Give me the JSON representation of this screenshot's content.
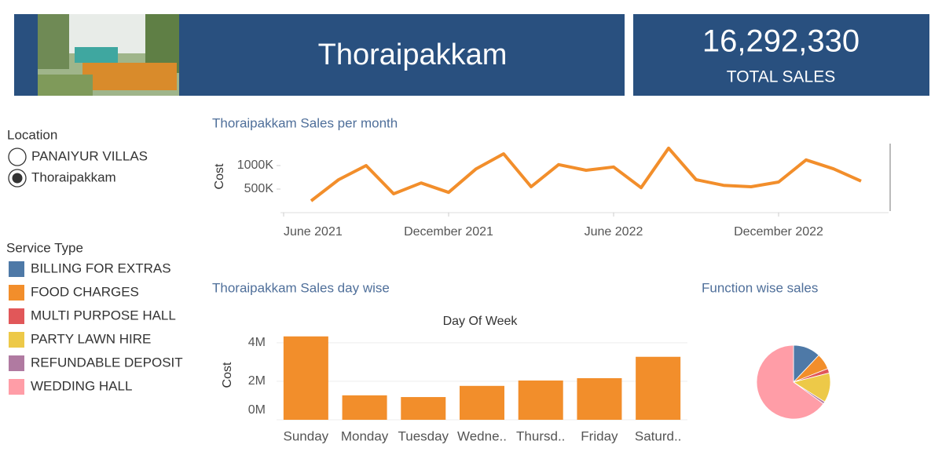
{
  "header": {
    "title": "Thoraipakkam"
  },
  "kpi": {
    "value": "16,292,330",
    "label": "TOTAL SALES"
  },
  "location_filter": {
    "title": "Location",
    "options": [
      "PANAIYUR VILLAS",
      "Thoraipakkam"
    ],
    "selected": 1
  },
  "chart_data": [
    {
      "type": "line",
      "title": "Thoraipakkam Sales per month",
      "ylabel": "Cost",
      "color": "#f28e2b",
      "x": [
        "2021-07",
        "2021-08",
        "2021-09",
        "2021-10",
        "2021-11",
        "2021-12",
        "2022-01",
        "2022-02",
        "2022-03",
        "2022-04",
        "2022-05",
        "2022-06",
        "2022-07",
        "2022-08",
        "2022-09",
        "2022-10",
        "2022-11",
        "2022-12",
        "2023-01",
        "2023-02",
        "2023-03"
      ],
      "values": [
        250,
        700,
        1000,
        400,
        630,
        430,
        930,
        1250,
        550,
        1020,
        900,
        970,
        530,
        1370,
        700,
        580,
        550,
        650,
        1120,
        930,
        670
      ],
      "xlim": [
        "2021-06",
        "2023-04"
      ],
      "xticks": [
        {
          "value": "2021-06",
          "label": "June 2021"
        },
        {
          "value": "2021-12",
          "label": "December 2021"
        },
        {
          "value": "2022-06",
          "label": "June 2022"
        },
        {
          "value": "2022-12",
          "label": "December 2022"
        }
      ],
      "ylim": [
        0,
        1450
      ],
      "yticks": [
        {
          "value": 500,
          "label": "500K"
        },
        {
          "value": 1000,
          "label": "1000K"
        }
      ]
    },
    {
      "type": "bar",
      "title": "Thoraipakkam Sales day wise",
      "subtitle": "Day Of Week",
      "ylabel": "Cost",
      "color": "#f28e2b",
      "categories": [
        "Sunday",
        "Monday",
        "Tuesday",
        "Wedne..",
        "Thursd..",
        "Friday",
        "Saturd.."
      ],
      "values": [
        4.33,
        1.27,
        1.18,
        1.76,
        2.04,
        2.16,
        3.27
      ],
      "ylim": [
        0,
        4.4
      ],
      "yticks": [
        {
          "value": 0,
          "label": "0M"
        },
        {
          "value": 2,
          "label": "2M"
        },
        {
          "value": 4,
          "label": "4M"
        }
      ],
      "grid": true
    },
    {
      "type": "pie",
      "title": "Function wise sales",
      "legend_title": "Service Type",
      "categories": [
        "BILLING FOR EXTRAS",
        "FOOD CHARGES",
        "MULTI PURPOSE HALL",
        "PARTY LAWN HIRE",
        "REFUNDABLE DEPOSIT",
        "WEDDING HALL"
      ],
      "values": [
        12,
        7,
        2,
        13,
        1,
        65
      ],
      "colors": [
        "#4e79a7",
        "#f28e2b",
        "#e15759",
        "#edc948",
        "#b07aa1",
        "#ff9da7"
      ]
    }
  ]
}
